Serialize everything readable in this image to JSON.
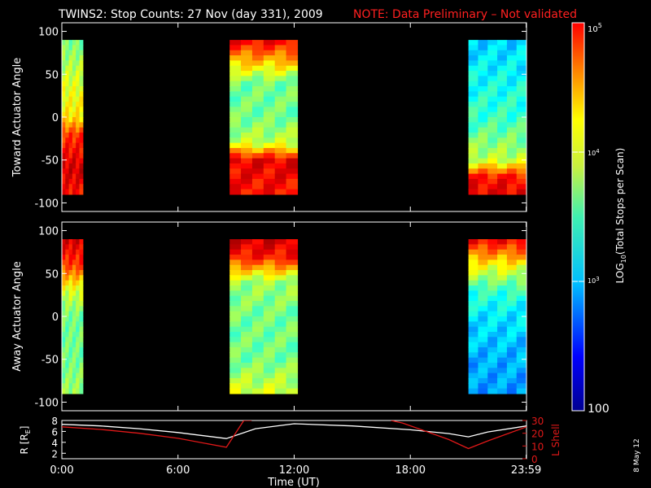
{
  "title": "TWINS2: Stop Counts: 27 Nov (day 331), 2009",
  "note": "NOTE: Data Preliminary – Not validated",
  "date_stamp": "8 May 12",
  "colors": {
    "background": "#000000",
    "note": "#ff2020",
    "r_line": "#ffffff",
    "l_shell_line": "#e01818"
  },
  "colorbar": {
    "label_prefix": "LOG",
    "label_sub": "10",
    "label_suffix": "(Total Stops per Scan)",
    "scale": "log",
    "range": [
      100,
      100000
    ],
    "tick_values": [
      100,
      1000,
      10000,
      100000
    ],
    "tick_labels": {
      "t100": "100",
      "t1000": "10",
      "t1000_exp": "3",
      "t10000": "10",
      "t10000_exp": "4",
      "t100000": "10",
      "t100000_exp": "5"
    }
  },
  "chart_data": [
    {
      "type": "heatmap",
      "name": "toward",
      "ylabel": "Toward Actuator Angle",
      "ylim": [
        -110,
        110
      ],
      "y_ticks": [
        "100",
        "50",
        "0",
        "-50",
        "-100"
      ],
      "y_tick_values": [
        100,
        50,
        0,
        -50,
        -100
      ],
      "x_range_hours": [
        0,
        24
      ],
      "y_extent": [
        -90,
        90
      ],
      "data_blocks": [
        {
          "t_start": "0:00",
          "t_end": "1:05",
          "profile": [
            [
              90,
              3000
            ],
            [
              40,
              6000
            ],
            [
              0,
              9000
            ],
            [
              -20,
              30000
            ],
            [
              -60,
              60000
            ],
            [
              -90,
              40000
            ]
          ]
        },
        {
          "t_start": "8:40",
          "t_end": "12:10",
          "profile": [
            [
              90,
              50000
            ],
            [
              40,
              3000
            ],
            [
              0,
              3000
            ],
            [
              -30,
              5000
            ],
            [
              -50,
              50000
            ],
            [
              -90,
              40000
            ]
          ]
        },
        {
          "t_start": "21:00",
          "t_end": "23:59",
          "profile": [
            [
              90,
              1000
            ],
            [
              40,
              1500
            ],
            [
              0,
              2000
            ],
            [
              -50,
              5000
            ],
            [
              -70,
              40000
            ],
            [
              -90,
              50000
            ]
          ]
        }
      ]
    },
    {
      "type": "heatmap",
      "name": "away",
      "ylabel": "Away Actuator Angle",
      "ylim": [
        -110,
        110
      ],
      "y_ticks": [
        "100",
        "50",
        "0",
        "-50",
        "-100"
      ],
      "y_tick_values": [
        100,
        50,
        0,
        -50,
        -100
      ],
      "x_range_hours": [
        0,
        24
      ],
      "y_extent": [
        -90,
        90
      ],
      "data_blocks": [
        {
          "t_start": "0:00",
          "t_end": "1:05",
          "profile": [
            [
              90,
              60000
            ],
            [
              60,
              30000
            ],
            [
              30,
              6000
            ],
            [
              0,
              3000
            ],
            [
              -50,
              3000
            ],
            [
              -90,
              4000
            ]
          ]
        },
        {
          "t_start": "8:40",
          "t_end": "12:10",
          "profile": [
            [
              90,
              60000
            ],
            [
              70,
              40000
            ],
            [
              40,
              4000
            ],
            [
              0,
              3000
            ],
            [
              -50,
              3000
            ],
            [
              -90,
              6000
            ]
          ]
        },
        {
          "t_start": "21:00",
          "t_end": "23:59",
          "profile": [
            [
              90,
              50000
            ],
            [
              60,
              8000
            ],
            [
              30,
              2000
            ],
            [
              0,
              1200
            ],
            [
              -50,
              800
            ],
            [
              -90,
              700
            ]
          ]
        }
      ]
    },
    {
      "type": "line",
      "name": "orbit",
      "ylabel_left": "R [R",
      "ylabel_left_sub": "E",
      "ylabel_left_close": "]",
      "ylabel_right": "L Shell",
      "xlabel": "Time (UT)",
      "x_ticks": [
        "0:00",
        "6:00",
        "12:00",
        "18:00",
        "23:59"
      ],
      "x_tick_hours": [
        0,
        6,
        12,
        18,
        23.983
      ],
      "ylim_left": [
        1,
        8
      ],
      "y_ticks_left": [
        "8",
        "6",
        "4",
        "2"
      ],
      "y_tick_values_left": [
        8,
        6,
        4,
        2
      ],
      "ylim_right": [
        0,
        30
      ],
      "y_ticks_right": [
        "30",
        "20",
        "10",
        "0"
      ],
      "y_tick_values_right": [
        30,
        20,
        10,
        0
      ],
      "series": [
        {
          "name": "R [RE]",
          "axis": "left",
          "x": [
            0,
            2,
            4,
            6,
            8.5,
            10,
            12,
            15,
            18,
            20,
            21,
            22,
            24
          ],
          "y": [
            7.3,
            7.0,
            6.5,
            5.8,
            4.7,
            6.5,
            7.4,
            7.0,
            6.3,
            5.6,
            5.0,
            5.9,
            7.0
          ]
        },
        {
          "name": "L Shell",
          "axis": "right",
          "x": [
            0,
            2,
            4,
            6,
            8.5,
            9.4,
            9.8
          ],
          "y": [
            25,
            23,
            20,
            16,
            9,
            30,
            30
          ]
        },
        {
          "name": "L Shell",
          "axis": "right",
          "x": [
            17.0,
            17.6,
            20,
            21,
            22,
            24
          ],
          "y": [
            30,
            28,
            15,
            8,
            14,
            25
          ]
        }
      ]
    }
  ]
}
